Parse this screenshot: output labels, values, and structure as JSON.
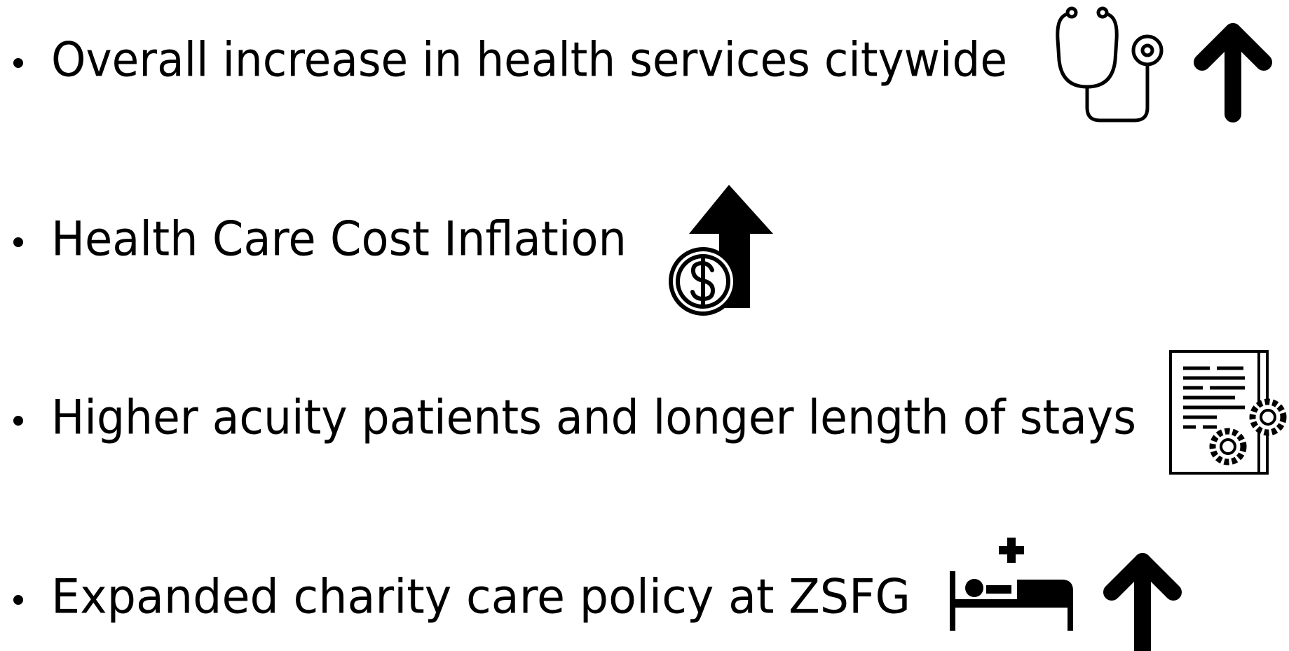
{
  "items": [
    "Overall increase in health services citywide",
    "Health Care Cost Inflation",
    "Higher acuity patients and longer length of stays",
    "Expanded charity care policy at ZSFG"
  ]
}
